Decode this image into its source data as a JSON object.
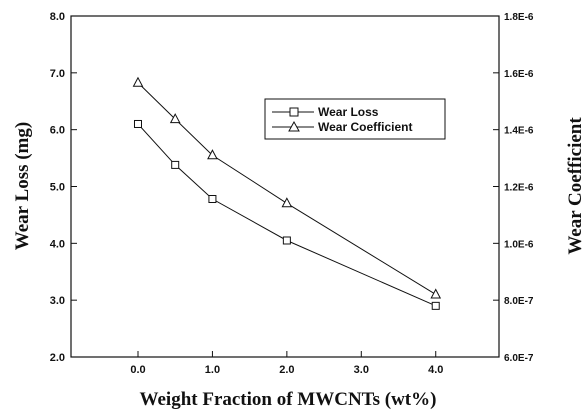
{
  "chart_data": {
    "type": "line",
    "xlabel": "Weight Fraction of MWCNTs (wt%)",
    "ylabel_left": "Wear Loss (mg)",
    "ylabel_right": "Wear Coefficient",
    "x_categories": [
      "0.0",
      "1.0",
      "2.0",
      "3.0",
      "4.0"
    ],
    "x_tick_values": [
      0,
      1,
      2,
      3,
      4
    ],
    "xlim": [
      -0.9,
      4.85
    ],
    "ylim_left": [
      2.0,
      8.0
    ],
    "ylim_right": [
      6e-07,
      1.8e-06
    ],
    "left_ticks": [
      "2.0",
      "3.0",
      "4.0",
      "5.0",
      "6.0",
      "7.0",
      "8.0"
    ],
    "left_tick_values": [
      2,
      3,
      4,
      5,
      6,
      7,
      8
    ],
    "right_ticks": [
      "6.0E-7",
      "8.0E-7",
      "1.0E-6",
      "1.2E-6",
      "1.4E-6",
      "1.6E-6",
      "1.8E-6"
    ],
    "right_tick_values": [
      6e-07,
      8e-07,
      1e-06,
      1.2e-06,
      1.4e-06,
      1.6e-06,
      1.8e-06
    ],
    "grid": false,
    "legend_position": "upper-right",
    "series": [
      {
        "name": "Wear Loss",
        "axis": "left",
        "marker": "square",
        "x": [
          0,
          0.5,
          1,
          2,
          4
        ],
        "values": [
          6.1,
          5.38,
          4.78,
          4.05,
          2.9
        ]
      },
      {
        "name": "Wear Coefficient",
        "axis": "right",
        "marker": "triangle",
        "x": [
          0,
          0.5,
          1,
          2,
          4
        ],
        "values": [
          1.565e-06,
          1.437e-06,
          1.31e-06,
          1.141e-06,
          8.2e-07
        ]
      }
    ]
  }
}
